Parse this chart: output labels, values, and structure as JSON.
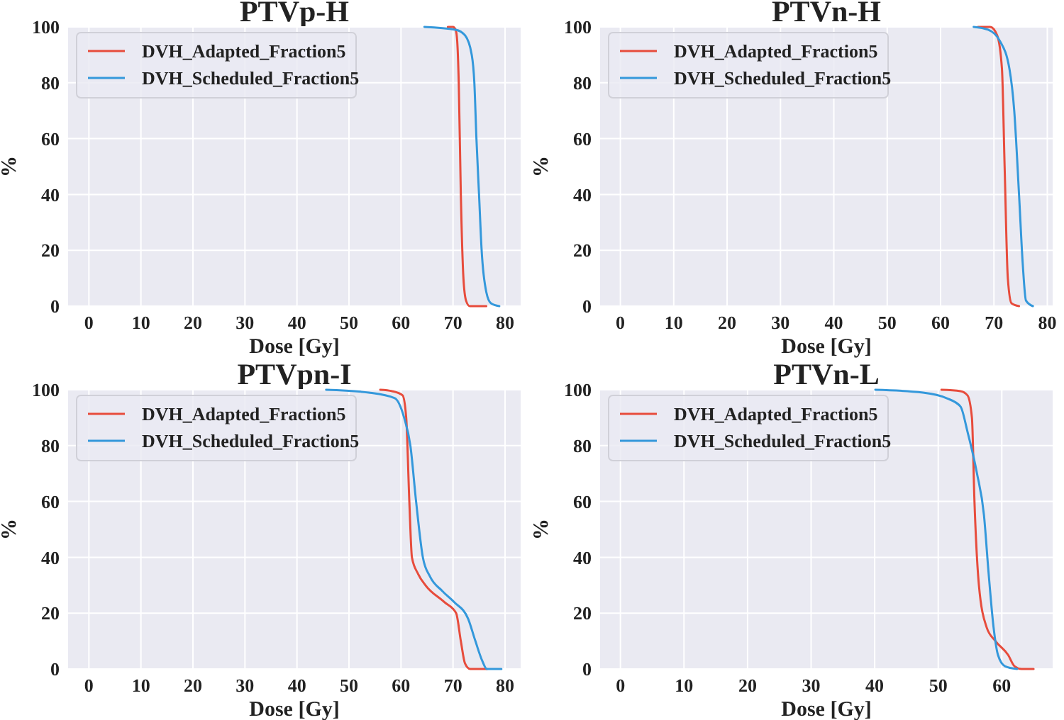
{
  "chart_data": [
    {
      "type": "line",
      "title": "PTVp-H",
      "xlabel": "Dose [Gy]",
      "ylabel": "%",
      "xlim": [
        -4,
        83
      ],
      "ylim": [
        0,
        100
      ],
      "xticks": [
        0,
        10,
        20,
        30,
        40,
        50,
        60,
        70,
        80
      ],
      "yticks": [
        0,
        20,
        40,
        60,
        80,
        100
      ],
      "grid": true,
      "legend": "top left",
      "marker": "none",
      "line_style": "solid",
      "series": [
        {
          "name": "DVH_Adapted_Fraction5",
          "color": "#e74c3c",
          "x": [
            69,
            70,
            70.5,
            70.8,
            71.1,
            71.5,
            72,
            72.5,
            73.2,
            76.4
          ],
          "values": [
            100,
            100,
            99,
            95,
            80,
            40,
            10,
            2,
            0,
            0
          ]
        },
        {
          "name": "DVH_Scheduled_Fraction5",
          "color": "#3498db",
          "x": [
            64.5,
            70.5,
            72.3,
            73.6,
            74.1,
            74.5,
            75,
            75.5,
            76.4,
            77.3,
            78.9
          ],
          "values": [
            100,
            99,
            97,
            90,
            80,
            60,
            40,
            20,
            5,
            1,
            0
          ]
        }
      ]
    },
    {
      "type": "line",
      "title": "PTVn-H",
      "xlabel": "Dose [Gy]",
      "ylabel": "%",
      "xlim": [
        -3.8,
        81
      ],
      "ylim": [
        0,
        100
      ],
      "xticks": [
        0,
        10,
        20,
        30,
        40,
        50,
        60,
        70,
        80
      ],
      "yticks": [
        0,
        20,
        40,
        60,
        80,
        100
      ],
      "grid": true,
      "legend": "top left",
      "marker": "none",
      "line_style": "solid",
      "series": [
        {
          "name": "DVH_Adapted_Fraction5",
          "color": "#e74c3c",
          "x": [
            67,
            69.3,
            70.6,
            71.5,
            72,
            72.6,
            73.3,
            74.7
          ],
          "values": [
            100,
            100,
            97,
            85,
            50,
            10,
            1,
            0
          ]
        },
        {
          "name": "DVH_Scheduled_Fraction5",
          "color": "#3498db",
          "x": [
            66.2,
            68.9,
            71.1,
            72.9,
            73.8,
            74.7,
            75.4,
            76,
            77.3
          ],
          "values": [
            100,
            99,
            95,
            85,
            70,
            40,
            15,
            2,
            0
          ]
        }
      ]
    },
    {
      "type": "line",
      "title": "PTVpn-I",
      "xlabel": "Dose [Gy]",
      "ylabel": "%",
      "xlim": [
        -4,
        83
      ],
      "ylim": [
        0,
        100
      ],
      "xticks": [
        0,
        10,
        20,
        30,
        40,
        50,
        60,
        70,
        80
      ],
      "yticks": [
        0,
        20,
        40,
        60,
        80,
        100
      ],
      "grid": true,
      "legend": "top left",
      "marker": "none",
      "line_style": "solid",
      "series": [
        {
          "name": "DVH_Adapted_Fraction5",
          "color": "#e74c3c",
          "x": [
            56,
            58.3,
            60.3,
            61,
            61.6,
            62.1,
            63.3,
            64.7,
            68.3,
            70.6,
            71.5,
            72.3,
            73.3,
            76.5
          ],
          "values": [
            100,
            99.5,
            98,
            90,
            60,
            40,
            34,
            30,
            24,
            20,
            10,
            2,
            0,
            0
          ]
        },
        {
          "name": "DVH_Scheduled_Fraction5",
          "color": "#3498db",
          "x": [
            45.6,
            53.8,
            58.8,
            60.6,
            61.8,
            62.9,
            64.2,
            65.6,
            67.9,
            70.2,
            72.9,
            74.3,
            75.6,
            76.5,
            79.3
          ],
          "values": [
            100,
            99,
            97,
            90,
            80,
            60,
            40,
            33,
            28,
            24,
            18,
            10,
            3,
            0,
            0
          ]
        }
      ]
    },
    {
      "type": "line",
      "title": "PTVn-L",
      "xlabel": "Dose [Gy]",
      "ylabel": "%",
      "xlim": [
        -3.2,
        68
      ],
      "ylim": [
        0,
        100
      ],
      "xticks": [
        0,
        10,
        20,
        30,
        40,
        50,
        60
      ],
      "yticks": [
        0,
        20,
        40,
        60,
        80,
        100
      ],
      "grid": true,
      "legend": "top left",
      "marker": "none",
      "line_style": "solid",
      "series": [
        {
          "name": "DVH_Adapted_Fraction5",
          "color": "#e74c3c",
          "x": [
            50.5,
            53.5,
            54.6,
            55.3,
            55.7,
            56.4,
            57.6,
            59,
            61,
            62,
            63.1,
            65
          ],
          "values": [
            100,
            99.5,
            98,
            90,
            60,
            30,
            15,
            10,
            5,
            1,
            0,
            0
          ]
        },
        {
          "name": "DVH_Scheduled_Fraction5",
          "color": "#3498db",
          "x": [
            40.1,
            47.6,
            51.3,
            53.5,
            54.6,
            56.1,
            57.2,
            57.9,
            58.7,
            59.4,
            60.5,
            62.4
          ],
          "values": [
            100,
            99,
            97,
            94,
            85,
            70,
            55,
            35,
            15,
            5,
            1,
            0
          ]
        }
      ]
    }
  ]
}
